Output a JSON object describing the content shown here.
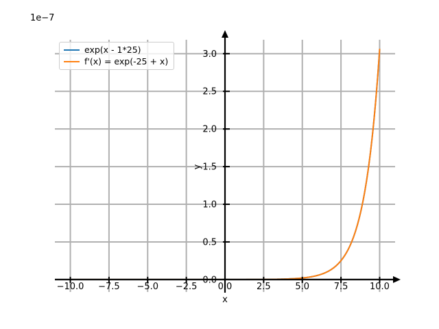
{
  "figure": {
    "offset_text": "1e−7",
    "background": "#ffffff"
  },
  "chart_data": {
    "type": "line",
    "title": "",
    "xlabel": "x",
    "ylabel": "y",
    "y_offset_text": "1e−7",
    "xlim": [
      -11,
      11
    ],
    "ylim_in_1e-7_units": [
      -0.165,
      3.185
    ],
    "x_ticks": [
      -10,
      -7.5,
      -5,
      -2.5,
      0,
      2.5,
      5,
      7.5,
      10
    ],
    "x_tick_labels": [
      "−10.0",
      "−7.5",
      "−5.0",
      "−2.5",
      "0.0",
      "2.5",
      "5.0",
      "7.5",
      "10.0"
    ],
    "y_ticks": [
      0,
      0.5,
      1,
      1.5,
      2,
      2.5,
      3
    ],
    "y_tick_labels": [
      "0.0",
      "0.5",
      "1.0",
      "1.5",
      "2.0",
      "2.5",
      "3.0"
    ],
    "grid": true,
    "axis_arrows": true,
    "legend_position": "upper left",
    "legend": {
      "items": [
        {
          "label": "exp(x - 1*25)",
          "color": "#1f77b4"
        },
        {
          "label": "f'(x) = exp(-25 + x)",
          "color": "#ff7f0e"
        }
      ]
    },
    "series": [
      {
        "name": "exp(x - 1*25)",
        "color": "#1f77b4",
        "math": {
          "fn": "exp",
          "x_shift": 25,
          "y_unit": 1e-07
        },
        "x_range": [
          -10,
          10
        ],
        "sample_points": {
          "x": [
            -10,
            -5,
            0,
            2.5,
            5,
            6,
            7,
            7.5,
            8,
            8.5,
            9,
            9.5,
            10
          ],
          "y_in_1e-7": [
            0,
            0,
            0.0001,
            0.0017,
            0.0206,
            0.056,
            0.1523,
            0.2511,
            0.414,
            0.6826,
            1.1254,
            1.8554,
            3.059
          ]
        }
      },
      {
        "name": "f'(x) = exp(-25 + x)",
        "color": "#ff7f0e",
        "math": {
          "fn": "exp",
          "x_shift": 25,
          "y_unit": 1e-07
        },
        "x_range": [
          -10,
          10
        ],
        "sample_points": {
          "x": [
            -10,
            -5,
            0,
            2.5,
            5,
            6,
            7,
            7.5,
            8,
            8.5,
            9,
            9.5,
            10
          ],
          "y_in_1e-7": [
            0,
            0,
            0.0001,
            0.0017,
            0.0206,
            0.056,
            0.1523,
            0.2511,
            0.414,
            0.6826,
            1.1254,
            1.8554,
            3.059
          ]
        }
      }
    ],
    "colors": {
      "grid": "#b0b0b0",
      "axis": "#000000",
      "tick_label": "#000000"
    }
  }
}
